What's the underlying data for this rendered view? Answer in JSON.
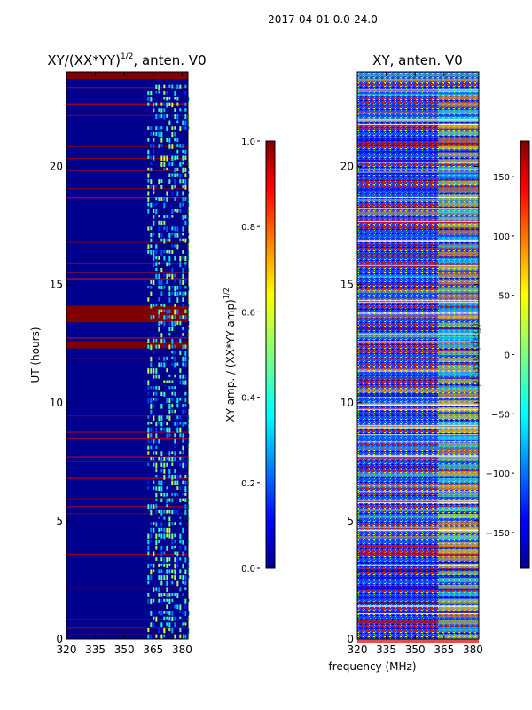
{
  "colors": {
    "jet_dark_blue": "#00008f",
    "jet_dark_red": "#800000"
  },
  "chart_data": [
    {
      "type": "heatmap",
      "suptitle": "2017-04-01 0.0-24.0",
      "title_main": "XY/(XX*YY)",
      "title_sup": "1/2",
      "title_tail": ", anten. V0",
      "ylabel": "UT (hours)",
      "xlabel": "",
      "xlim": [
        320,
        383
      ],
      "ylim": [
        0,
        24
      ],
      "xticks": [
        "320",
        "335",
        "350",
        "365",
        "380"
      ],
      "yticks": [
        "0",
        "5",
        "10",
        "15",
        "20"
      ],
      "colorbar": {
        "label_main": "XY amp. / (XX*YY amp)",
        "label_sup": "1/2",
        "range": [
          0.0,
          1.0
        ],
        "ticks": [
          "0.0",
          "0.2",
          "0.4",
          "0.6",
          "0.8",
          "1.0"
        ]
      },
      "features": {
        "saturated_hour_bands": [
          [
            13.4,
            14.1
          ],
          [
            12.3,
            12.6
          ],
          [
            23.7,
            24.0
          ]
        ],
        "rfi_channel_range_mhz": [
          362,
          383
        ],
        "background_level": 0.08
      }
    },
    {
      "type": "heatmap",
      "title": "XY, anten. V0",
      "ylabel": "",
      "xlabel": "frequency (MHz)",
      "xlim": [
        320,
        383
      ],
      "ylim": [
        0,
        24
      ],
      "xticks": [
        "320",
        "335",
        "350",
        "365",
        "380"
      ],
      "yticks": [
        "0",
        "5",
        "10",
        "15",
        "20"
      ],
      "colorbar": {
        "label": "phase (deg)",
        "range": [
          -180,
          180
        ],
        "ticks": [
          "150",
          "100",
          "50",
          "0",
          "−50",
          "−100",
          "−150"
        ]
      },
      "features": {
        "noisy_phase_everywhere": true,
        "coherent_channel_range_mhz": [
          362,
          383
        ],
        "stable_phase_hour_ranges": [
          [
            0.0,
            4.0
          ],
          [
            19.0,
            21.5
          ]
        ]
      }
    }
  ]
}
